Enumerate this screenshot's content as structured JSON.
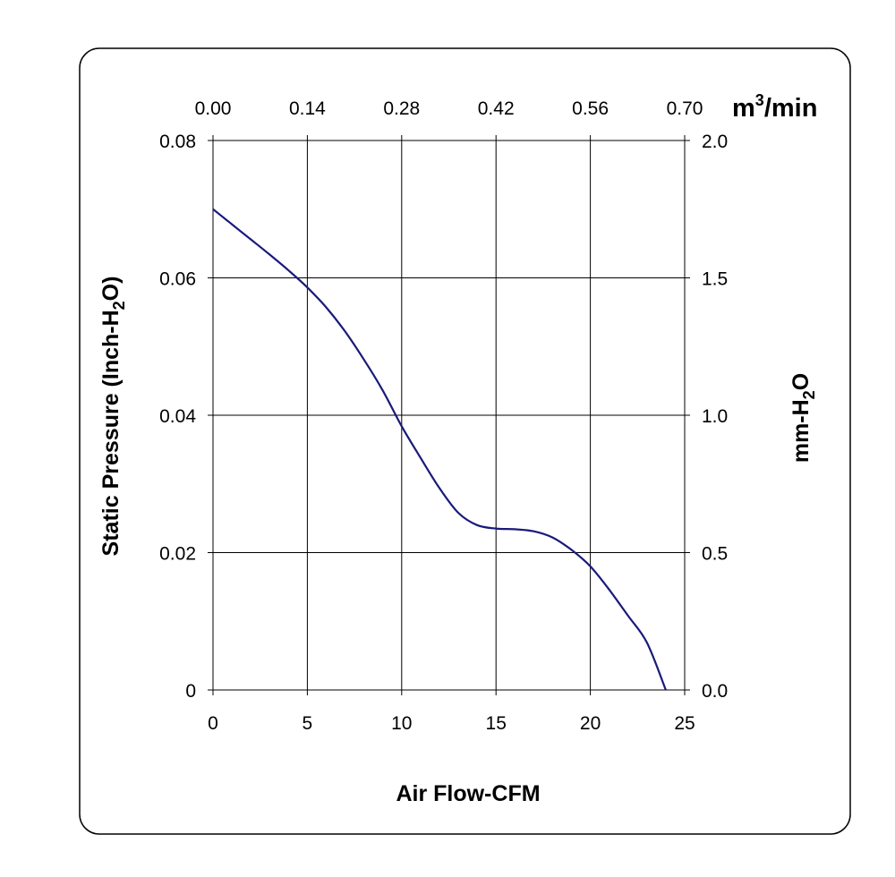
{
  "chart_data": {
    "type": "line",
    "title": "",
    "xlabel": "Air Flow-CFM",
    "ylabel": {
      "text": "Static Pressure (Inch-H",
      "sub": "2",
      "tail": "O)"
    },
    "xlim": [
      0,
      25
    ],
    "ylim": [
      0,
      0.08
    ],
    "x_ticks": [
      "0",
      "5",
      "10",
      "15",
      "20",
      "25"
    ],
    "y_ticks": [
      "0",
      "0.02",
      "0.04",
      "0.06",
      "0.08"
    ],
    "x2_label": {
      "text": "m",
      "sup": "3",
      "tail": "/min"
    },
    "x2_ticks": [
      "0.00",
      "0.14",
      "0.28",
      "0.42",
      "0.56",
      "0.70"
    ],
    "y2_label": {
      "text": "mm-H",
      "sub": "2",
      "tail": "O"
    },
    "y2_ticks": [
      "0.0",
      "0.5",
      "1.0",
      "1.5",
      "2.0"
    ],
    "grid": true,
    "line_color": "#1a1a7a",
    "series": [
      {
        "x": [
          0,
          1,
          2,
          3,
          4,
          5,
          6,
          7,
          8,
          9,
          10,
          11,
          12,
          13,
          14,
          15,
          16,
          17,
          18,
          19,
          20,
          21,
          22,
          23,
          24
        ],
        "y": [
          0.07,
          0.0678,
          0.0656,
          0.0634,
          0.0611,
          0.0586,
          0.0557,
          0.0522,
          0.0481,
          0.0436,
          0.0384,
          0.0338,
          0.0294,
          0.0258,
          0.024,
          0.0235,
          0.0234,
          0.0231,
          0.0222,
          0.0204,
          0.018,
          0.0146,
          0.0108,
          0.0069,
          0.0
        ]
      }
    ]
  }
}
